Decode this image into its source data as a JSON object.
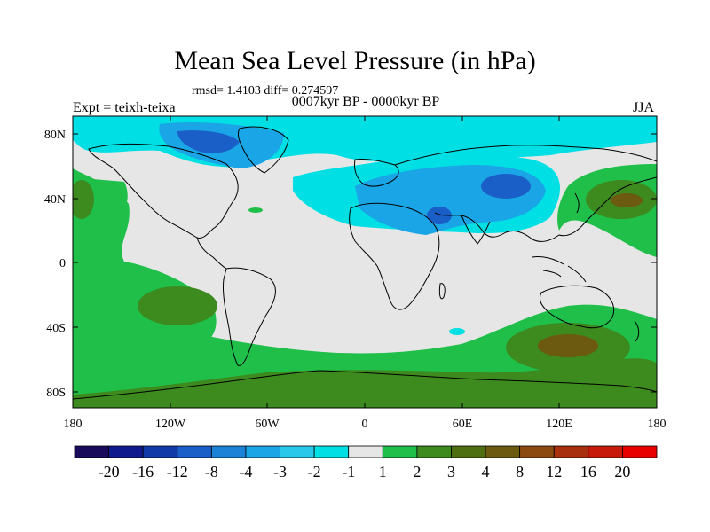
{
  "title": "Mean Sea Level Pressure (in hPa)",
  "stats_text": "rmsd= 1.4103 diff= 0.274597",
  "period": "0007kyr BP - 0000kyr BP",
  "expt": "Expt = teixh-teixa",
  "season": "JJA",
  "map": {
    "lon_ticks": [
      "180",
      "120W",
      "60W",
      "0",
      "60E",
      "120E",
      "180"
    ],
    "lat_ticks": [
      "80N",
      "40N",
      "0",
      "40S",
      "80S"
    ],
    "regions": {
      "background": "#e6e6e6",
      "land_outline": "#000000"
    }
  },
  "colorbar": {
    "colors": [
      "#1a0a5c",
      "#101a8c",
      "#0f3aa8",
      "#1a5ec8",
      "#1c82d8",
      "#1aa6e6",
      "#27c8ea",
      "#00e0e4",
      "#e6e6e6",
      "#1fbf4a",
      "#3d8a1e",
      "#4e6e12",
      "#6b5a10",
      "#8a4a10",
      "#a8300e",
      "#c81a0a",
      "#e80000"
    ],
    "labels": [
      "-20",
      "-16",
      "-12",
      "-8",
      "-4",
      "-3",
      "-2",
      "-1",
      "1",
      "2",
      "3",
      "4",
      "8",
      "12",
      "16",
      "20"
    ]
  }
}
